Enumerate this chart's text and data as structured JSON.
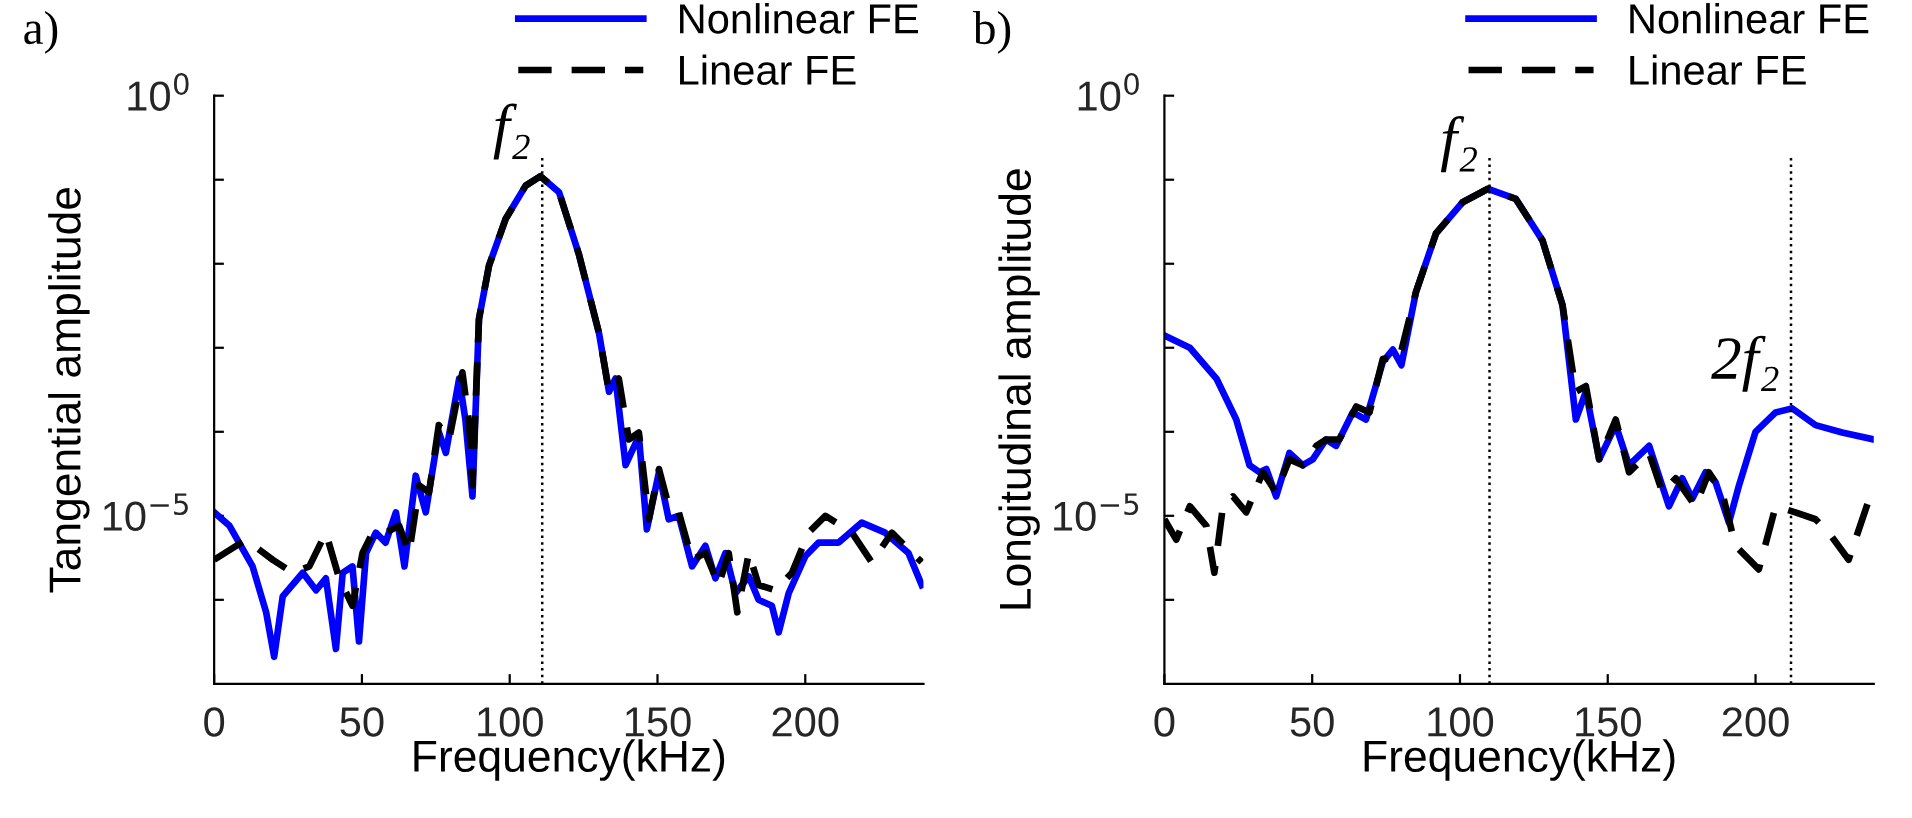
{
  "chart_data": [
    {
      "type": "line",
      "title": "a)",
      "xlabel": "Frequency(kHz)",
      "ylabel": "Tangential amplitude",
      "log": "y",
      "xlim": [
        0,
        240
      ],
      "xticks": [
        0,
        50,
        100,
        150,
        200
      ],
      "ylim": [
        1e-07,
        1
      ],
      "yticks": [
        {
          "value": 1,
          "label": "10$^{0}$"
        },
        {
          "value": 0.1,
          "label": null
        },
        {
          "value": 0.01,
          "label": null
        },
        {
          "value": 0.001,
          "label": null
        },
        {
          "value": 0.0001,
          "label": null
        },
        {
          "value": 1e-05,
          "label": "10$^{−5}$"
        },
        {
          "value": 1e-06,
          "label": null
        }
      ],
      "grid": false,
      "legend": "top right",
      "ref_lines": [
        {
          "axis": "x",
          "value": 111,
          "line_style": "dotted",
          "color": "#000000"
        }
      ],
      "annotations": [
        {
          "text": "f₂",
          "x": 111,
          "y": 0.11
        }
      ],
      "series": [
        {
          "name": "Nonlinear FE",
          "color": "#0000ff",
          "line_style": "solid",
          "x": [
            0,
            5.2,
            13,
            17.6,
            20.3,
            23.2,
            30,
            34.5,
            37.8,
            41.2,
            43.5,
            46.8,
            49,
            51.4,
            54.7,
            58,
            61.5,
            64.4,
            68.2,
            71.6,
            76,
            78.4,
            82.9,
            85,
            87.4,
            89.6,
            93,
            98.6,
            105.4,
            110.4,
            116.7,
            123.4,
            130.2,
            133.6,
            135.8,
            139.2,
            143.7,
            146.4,
            150.5,
            153.8,
            157.2,
            161.7,
            166.2,
            169.6,
            173,
            176.4,
            180.9,
            184.2,
            188.7,
            191,
            194.4,
            200,
            204.5,
            211.3,
            219.1,
            227,
            234.9,
            239.4
          ],
          "values": [
            1.1e-05,
            7.6e-06,
            2.5e-06,
            7.1e-07,
            2.1e-07,
            1.1e-06,
            2.1e-06,
            1.3e-06,
            1.8e-06,
            2.6e-07,
            2.1e-06,
            2.5e-06,
            3.2e-07,
            3.6e-06,
            6.3e-06,
            4.8e-06,
            1.1e-05,
            2.5e-06,
            3e-05,
            1.1e-05,
            0.0001,
            5.6e-05,
            0.00043,
            0.00014,
            1.7e-05,
            0.0022,
            0.0095,
            0.034,
            0.085,
            0.11,
            0.071,
            0.013,
            0.0015,
            0.0003,
            0.00043,
            4e-05,
            8.9e-05,
            6.9e-06,
            3.3e-05,
            9.1e-06,
            1e-05,
            2.5e-06,
            4.4e-06,
            1.8e-06,
            3.6e-06,
            1.2e-06,
            1.9e-06,
            1e-06,
            8.5e-07,
            4.1e-07,
            1.2e-06,
            3.3e-06,
            4.8e-06,
            4.8e-06,
            8.3e-06,
            6.3e-06,
            3.6e-06,
            1.5e-06
          ]
        },
        {
          "name": "Linear FE",
          "color": "#000000",
          "line_style": "dashed",
          "x": [
            0,
            10.8,
            19.8,
            26.6,
            32.2,
            37.8,
            42.3,
            46.8,
            50.2,
            53.6,
            58,
            62.6,
            66,
            69.4,
            72.7,
            76,
            79.5,
            84,
            86.3,
            87.4,
            89.6,
            93,
            98.6,
            105.4,
            110.4,
            116.7,
            123.4,
            130.2,
            133.6,
            136.9,
            140.3,
            143.7,
            147.1,
            150.5,
            153.8,
            157.2,
            161.7,
            166.2,
            170.7,
            174.1,
            177,
            180.9,
            184.2,
            189.9,
            195.5,
            201.1,
            206.8,
            215.8,
            222.5,
            229.3,
            239.4
          ],
          "values": [
            3e-06,
            5.2e-06,
            3e-06,
            2.1e-06,
            2.5e-06,
            6.3e-06,
            1.8e-06,
            8.5e-07,
            3.6e-06,
            6.3e-06,
            6.3e-06,
            7.6e-06,
            3.6e-06,
            2.3e-05,
            1.9e-05,
            0.00012,
            8.1e-05,
            0.00051,
            0.00012,
            2.3e-05,
            0.0022,
            0.0095,
            0.034,
            0.085,
            0.11,
            0.071,
            0.013,
            0.0015,
            0.0003,
            0.00043,
            8.1e-05,
            9.8e-05,
            9.1e-06,
            3.6e-05,
            1.3e-05,
            1.1e-05,
            3e-06,
            3.6e-06,
            1.5e-06,
            3.6e-06,
            7.1e-07,
            3.6e-06,
            1.5e-06,
            1.3e-06,
            2.1e-06,
            6.3e-06,
            1e-05,
            6.3e-06,
            2.8e-06,
            6.3e-06,
            2.8e-06
          ]
        }
      ]
    },
    {
      "type": "line",
      "title": "b)",
      "xlabel": "Frequency(kHz)",
      "ylabel": "Longitudinal amplitude",
      "log": "y",
      "xlim": [
        0,
        240
      ],
      "xticks": [
        0,
        50,
        100,
        150,
        200
      ],
      "ylim": [
        1e-07,
        1
      ],
      "yticks": [
        {
          "value": 1,
          "label": "10$^{0}$"
        },
        {
          "value": 0.1,
          "label": null
        },
        {
          "value": 0.01,
          "label": null
        },
        {
          "value": 0.001,
          "label": null
        },
        {
          "value": 0.0001,
          "label": null
        },
        {
          "value": 1e-05,
          "label": "10$^{−5}$"
        },
        {
          "value": 1e-06,
          "label": null
        }
      ],
      "grid": false,
      "legend": "top right",
      "ref_lines": [
        {
          "axis": "x",
          "value": 110,
          "line_style": "dotted",
          "color": "#000000"
        },
        {
          "axis": "x",
          "value": 212,
          "line_style": "dotted",
          "color": "#000000"
        }
      ],
      "annotations": [
        {
          "text": "f₂",
          "x": 110,
          "y": 0.078
        },
        {
          "text": "2f₂",
          "x": 212,
          "y": 0.00019
        }
      ],
      "series": [
        {
          "name": "Nonlinear FE",
          "color": "#0000ff",
          "line_style": "solid",
          "x": [
            0,
            8.6,
            17.6,
            24.3,
            28.8,
            32.2,
            34.5,
            37.8,
            42.3,
            46.8,
            50.2,
            54.7,
            58.1,
            63.7,
            68.2,
            73.9,
            77.3,
            80.2,
            85.1,
            91.9,
            100.9,
            109.5,
            118.9,
            127.9,
            134.7,
            139.2,
            142.6,
            147.1,
            152.7,
            157.2,
            164,
            170.7,
            175.2,
            178.6,
            183.1,
            186.5,
            191,
            194.4,
            200,
            206.8,
            212.4,
            220.3,
            229.3,
            240
          ],
          "values": [
            0.0014,
            0.001,
            0.00043,
            0.00014,
            4e-05,
            3.3e-05,
            3.6e-05,
            1.7e-05,
            5.6e-05,
            4e-05,
            4.7e-05,
            8.1e-05,
            6.8e-05,
            0.00017,
            0.00014,
            0.00068,
            0.00095,
            0.00062,
            0.0046,
            0.023,
            0.054,
            0.078,
            0.059,
            0.019,
            0.0032,
            0.00014,
            0.0003,
            4.7e-05,
            0.00012,
            4e-05,
            6.8e-05,
            1.3e-05,
            2.8e-05,
            1.6e-05,
            3.3e-05,
            2.5e-05,
            8.3e-06,
            2.3e-05,
            0.0001,
            0.00017,
            0.00019,
            0.00012,
            9.8e-05,
            8.1e-05
          ]
        },
        {
          "name": "Linear FE",
          "color": "#000000",
          "line_style": "dashed",
          "x": [
            0,
            4,
            8.6,
            14.2,
            16.9,
            19.8,
            23.2,
            27.7,
            33.3,
            37.8,
            42.3,
            46.8,
            51.4,
            54.7,
            59.2,
            64.9,
            69.4,
            73.9,
            79.5,
            85.1,
            91.9,
            100.9,
            109.5,
            118.9,
            127.9,
            134.7,
            139.2,
            142.6,
            147.1,
            152.7,
            157.2,
            164,
            168.5,
            173,
            179.7,
            184.2,
            188.7,
            193.2,
            201.1,
            206.8,
            213.5,
            220.3,
            224.8,
            231.5,
            240
          ],
          "values": [
            9.1e-06,
            5.2e-06,
            1.3e-05,
            7.6e-06,
            2.1e-06,
            1.3e-05,
            1.7e-05,
            1.1e-05,
            3.3e-05,
            1.9e-05,
            4.7e-05,
            4e-05,
            6.8e-05,
            8.1e-05,
            8.1e-05,
            0.0002,
            0.00017,
            0.00074,
            0.00074,
            0.0046,
            0.023,
            0.054,
            0.078,
            0.059,
            0.019,
            0.0032,
            0.0003,
            0.00035,
            4.7e-05,
            0.00014,
            3.3e-05,
            5.6e-05,
            1.9e-05,
            2.8e-05,
            1.3e-05,
            3.3e-05,
            1.9e-05,
            4.4e-06,
            2.3e-06,
            1.3e-05,
            1.1e-05,
            9.1e-06,
            6.3e-06,
            3e-06,
            2.3e-05
          ]
        }
      ]
    }
  ]
}
